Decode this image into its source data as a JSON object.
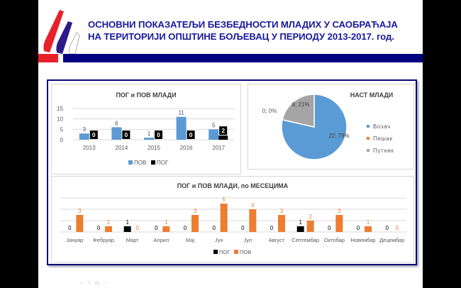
{
  "header": {
    "title_line1": "ОСНОВНИ ПОКАЗАТЕЉИ БЕЗБЕДНОСТИ МЛАДИХ У САОБРАЋАЈА",
    "title_line2": "НА ТЕРИТОРИЈИ ОПШТИНЕ БОЉЕВАЦ У ПЕРИОДУ 2013-2017. год.",
    "accent_red": "#e8202a",
    "accent_blue": "#000080"
  },
  "chart_data": [
    {
      "type": "bar",
      "title": "ПОГ и ПОВ МЛАДИ",
      "categories": [
        "2013",
        "2014",
        "2015",
        "2016",
        "2017"
      ],
      "series": [
        {
          "name": "ПОВ",
          "values": [
            3,
            6,
            1,
            11,
            5
          ],
          "color": "#5b9bd5"
        },
        {
          "name": "ПОГ",
          "values": [
            0,
            0,
            0,
            0,
            2
          ],
          "color": "#000000"
        }
      ],
      "ylim": [
        0,
        15
      ],
      "yticks": [
        "0",
        "5",
        "10",
        "15"
      ],
      "grid": true,
      "legend": "bottom"
    },
    {
      "type": "pie",
      "title": "НАСТ МЛАДИ",
      "slices": [
        {
          "name": "Возач",
          "value": 22,
          "percent": 79,
          "label": "22; 79%",
          "color": "#5b9bd5"
        },
        {
          "name": "Пешак",
          "value": 0,
          "percent": 0,
          "label": "0; 0%",
          "color": "#ed7d31"
        },
        {
          "name": "Путник",
          "value": 6,
          "percent": 21,
          "label": "6; 21%",
          "color": "#a5a5a5"
        }
      ],
      "legend": "right"
    },
    {
      "type": "bar",
      "title": "ПОГ и ПОВ МЛАДИ, по МЕСЕЦИМА",
      "categories": [
        "Јануар",
        "Фебруар",
        "Март",
        "Април",
        "Мај",
        "Јун",
        "Јул",
        "Август",
        "Септембар",
        "Октобар",
        "Новембар",
        "Децембар"
      ],
      "series": [
        {
          "name": "ПОГ",
          "values": [
            0,
            0,
            1,
            0,
            0,
            0,
            0,
            0,
            1,
            0,
            0,
            0
          ],
          "color": "#000000"
        },
        {
          "name": "ПОВ",
          "values": [
            3,
            1,
            0,
            1,
            3,
            5,
            4,
            3,
            2,
            3,
            1,
            0
          ],
          "color": "#ed7d31"
        }
      ],
      "ylim": [
        0,
        6
      ],
      "grid": true,
      "legend": "bottom"
    }
  ],
  "footer": {
    "icons": [
      "arrow-left-icon",
      "pen-icon",
      "slides-icon",
      "arrow-right-icon"
    ]
  }
}
